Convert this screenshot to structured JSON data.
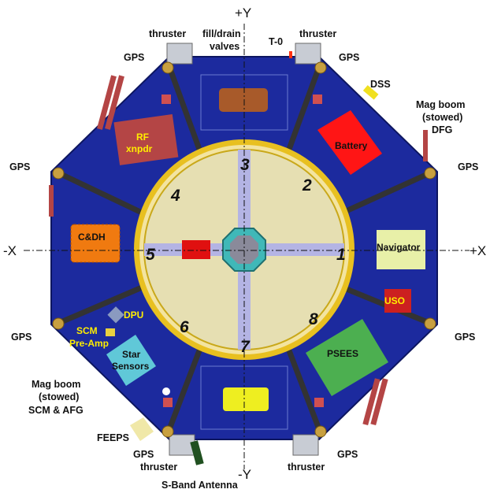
{
  "axes": {
    "plus_y": "+Y",
    "minus_y": "-Y",
    "minus_x": "-X",
    "plus_x": "+X"
  },
  "labels": {
    "thruster": "thruster",
    "gps": "GPS",
    "fill_drain_1": "fill/drain",
    "fill_drain_2": "valves",
    "t0": "T-0",
    "dss": "DSS",
    "mag_boom_top_1": "Mag boom",
    "mag_boom_top_2": "(stowed)",
    "mag_boom_top_3": "DFG",
    "mag_boom_bottom_1": "Mag boom",
    "mag_boom_bottom_2": "(stowed)",
    "mag_boom_bottom_3": "SCM & AFG",
    "feeps": "FEEPS",
    "s_band": "S-Band Antenna"
  },
  "components": {
    "rf_1": "RF",
    "rf_2": "xnpdr",
    "battery": "Battery",
    "cdh": "C&DH",
    "navigator": "Navigator",
    "uso": "USO",
    "dpu": "DPU",
    "scm_1": "SCM",
    "scm_2": "Pre-Amp",
    "star_1": "Star",
    "star_2": "Sensors",
    "psees": "PSEES"
  },
  "numbers": [
    "1",
    "2",
    "3",
    "4",
    "5",
    "6",
    "7",
    "8"
  ],
  "colors": {
    "deck": "#1c2a9e",
    "inner": "#e6dfb2",
    "ring": "#e8c020",
    "battery": "#ff1515",
    "cdh": "#f07a10",
    "navigator": "#e8f0a8",
    "psees": "#4caf50",
    "uso": "#cc2020",
    "yellow_text": "#ffee00"
  }
}
